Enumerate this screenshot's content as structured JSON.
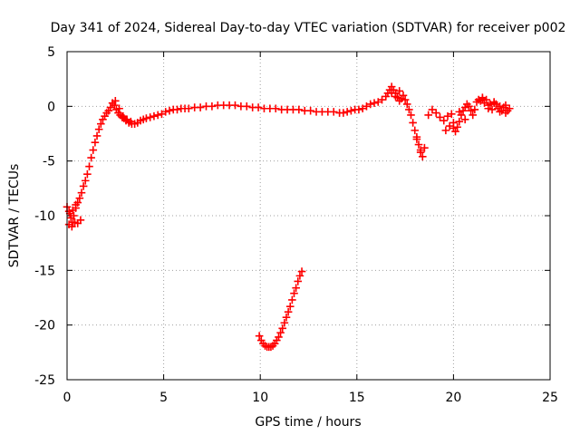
{
  "chart_data": {
    "type": "scatter",
    "title": "Day 341 of 2024, Sidereal Day-to-day VTEC variation (SDTVAR) for receiver p002",
    "xlabel": "GPS time / hours",
    "ylabel": "SDTVAR / TECUs",
    "xlim": [
      0,
      25
    ],
    "ylim": [
      -25,
      5
    ],
    "xticks": [
      0,
      5,
      10,
      15,
      20,
      25
    ],
    "yticks": [
      -25,
      -20,
      -15,
      -10,
      -5,
      0,
      5
    ],
    "grid": true,
    "marker": "plus",
    "color": "#ff0000",
    "series": [
      {
        "name": "SDTVAR",
        "x": [
          0.0,
          0.1,
          0.2,
          0.3,
          0.35,
          0.45,
          0.55,
          0.65,
          0.75,
          0.85,
          0.95,
          1.05,
          1.15,
          1.25,
          1.35,
          1.45,
          1.55,
          1.65,
          1.75,
          1.85,
          1.95,
          2.05,
          2.15,
          2.25,
          2.35,
          2.45,
          2.55,
          2.65,
          2.75,
          2.85,
          2.95,
          3.05,
          3.2,
          3.35,
          3.5,
          3.65,
          3.8,
          3.95,
          4.1,
          4.3,
          4.5,
          4.7,
          4.9,
          5.1,
          5.3,
          5.5,
          5.7,
          5.9,
          6.1,
          6.3,
          6.6,
          6.9,
          7.2,
          7.5,
          7.8,
          8.1,
          8.4,
          8.7,
          9.0,
          9.3,
          9.6,
          9.9,
          10.2,
          10.5,
          10.8,
          11.1,
          11.4,
          11.7,
          12.0,
          12.3,
          12.6,
          12.9,
          13.2,
          13.5,
          13.8,
          14.1,
          14.3,
          14.5,
          14.7,
          14.9,
          15.1,
          15.3,
          15.5,
          15.7,
          15.9,
          16.1,
          16.3,
          16.5,
          16.6,
          16.7,
          16.8,
          16.9,
          17.0,
          17.1,
          17.2,
          17.3,
          17.4,
          17.5,
          17.6,
          17.7,
          17.8,
          17.9,
          18.0,
          18.1,
          18.2,
          18.3,
          18.4,
          18.5,
          18.7,
          18.9,
          19.1,
          19.3,
          19.5,
          19.7,
          19.9,
          20.0,
          20.1,
          20.2,
          20.3,
          20.4,
          20.5,
          20.6,
          20.7,
          20.8,
          20.9,
          21.0,
          21.1,
          21.2,
          21.3,
          21.4,
          21.5,
          21.6,
          21.7,
          21.8,
          21.9,
          22.0,
          22.1,
          22.2,
          22.3,
          22.4,
          22.5,
          22.6,
          22.7,
          22.8,
          22.9,
          9.95,
          10.05,
          10.15,
          10.25,
          10.35,
          10.45,
          10.55,
          10.65,
          10.75,
          10.85,
          10.95,
          11.05,
          11.15,
          11.25,
          11.35,
          11.45,
          11.55,
          11.65,
          11.75,
          11.85,
          11.95,
          12.05,
          12.15,
          0.1,
          0.25,
          0.4,
          0.55,
          0.7,
          0.15,
          0.3,
          0.45,
          2.5,
          2.7,
          2.9,
          3.1,
          3.3,
          16.8,
          17.0,
          17.2,
          18.1,
          18.3,
          19.6,
          19.8,
          20.0,
          20.3,
          20.6,
          21.5,
          21.8,
          22.1,
          22.4,
          22.7
        ],
        "y": [
          -9.2,
          -9.6,
          -10.2,
          -10.6,
          -10.0,
          -9.3,
          -8.8,
          -8.4,
          -7.9,
          -7.3,
          -6.8,
          -6.2,
          -5.5,
          -4.7,
          -4.0,
          -3.3,
          -2.7,
          -2.1,
          -1.6,
          -1.2,
          -0.9,
          -0.6,
          -0.4,
          -0.1,
          0.3,
          0.1,
          -0.3,
          -0.6,
          -0.8,
          -1.0,
          -1.1,
          -1.3,
          -1.5,
          -1.6,
          -1.6,
          -1.5,
          -1.3,
          -1.2,
          -1.1,
          -1.0,
          -0.9,
          -0.8,
          -0.7,
          -0.5,
          -0.4,
          -0.3,
          -0.3,
          -0.2,
          -0.2,
          -0.2,
          -0.1,
          -0.1,
          0.0,
          0.0,
          0.1,
          0.1,
          0.1,
          0.1,
          0.0,
          0.0,
          -0.1,
          -0.1,
          -0.2,
          -0.2,
          -0.2,
          -0.3,
          -0.3,
          -0.3,
          -0.3,
          -0.4,
          -0.4,
          -0.5,
          -0.5,
          -0.5,
          -0.5,
          -0.6,
          -0.6,
          -0.5,
          -0.4,
          -0.3,
          -0.3,
          -0.2,
          0.0,
          0.2,
          0.3,
          0.4,
          0.6,
          0.9,
          1.2,
          1.5,
          1.8,
          1.5,
          1.2,
          0.8,
          0.5,
          0.7,
          1.0,
          0.6,
          0.2,
          -0.3,
          -0.8,
          -1.5,
          -2.2,
          -2.8,
          -3.5,
          -4.2,
          -4.6,
          -3.8,
          -0.8,
          -0.3,
          -0.6,
          -1.0,
          -1.3,
          -0.9,
          -0.7,
          -1.5,
          -2.3,
          -1.9,
          -1.4,
          -0.8,
          -0.4,
          -0.1,
          0.2,
          0.0,
          -0.4,
          -0.8,
          -0.3,
          0.4,
          0.6,
          0.5,
          0.7,
          0.3,
          0.6,
          0.1,
          0.2,
          -0.3,
          0.4,
          0.2,
          -0.2,
          -0.5,
          -0.4,
          -0.1,
          0.1,
          -0.4,
          -0.2,
          -21.0,
          -21.4,
          -21.7,
          -21.9,
          -22.0,
          -22.0,
          -22.0,
          -21.9,
          -21.7,
          -21.4,
          -21.1,
          -20.7,
          -20.3,
          -19.8,
          -19.3,
          -18.8,
          -18.3,
          -17.7,
          -17.1,
          -16.6,
          -16.0,
          -15.5,
          -15.1,
          -10.8,
          -11.0,
          -10.6,
          -10.7,
          -10.4,
          -9.8,
          -9.5,
          -9.0,
          0.5,
          -0.2,
          -0.9,
          -1.2,
          -1.4,
          1.2,
          0.9,
          1.4,
          -3.0,
          -4.0,
          -2.2,
          -1.8,
          -2.0,
          -0.5,
          -1.2,
          0.8,
          -0.2,
          0.3,
          0.0,
          -0.6
        ]
      }
    ]
  }
}
